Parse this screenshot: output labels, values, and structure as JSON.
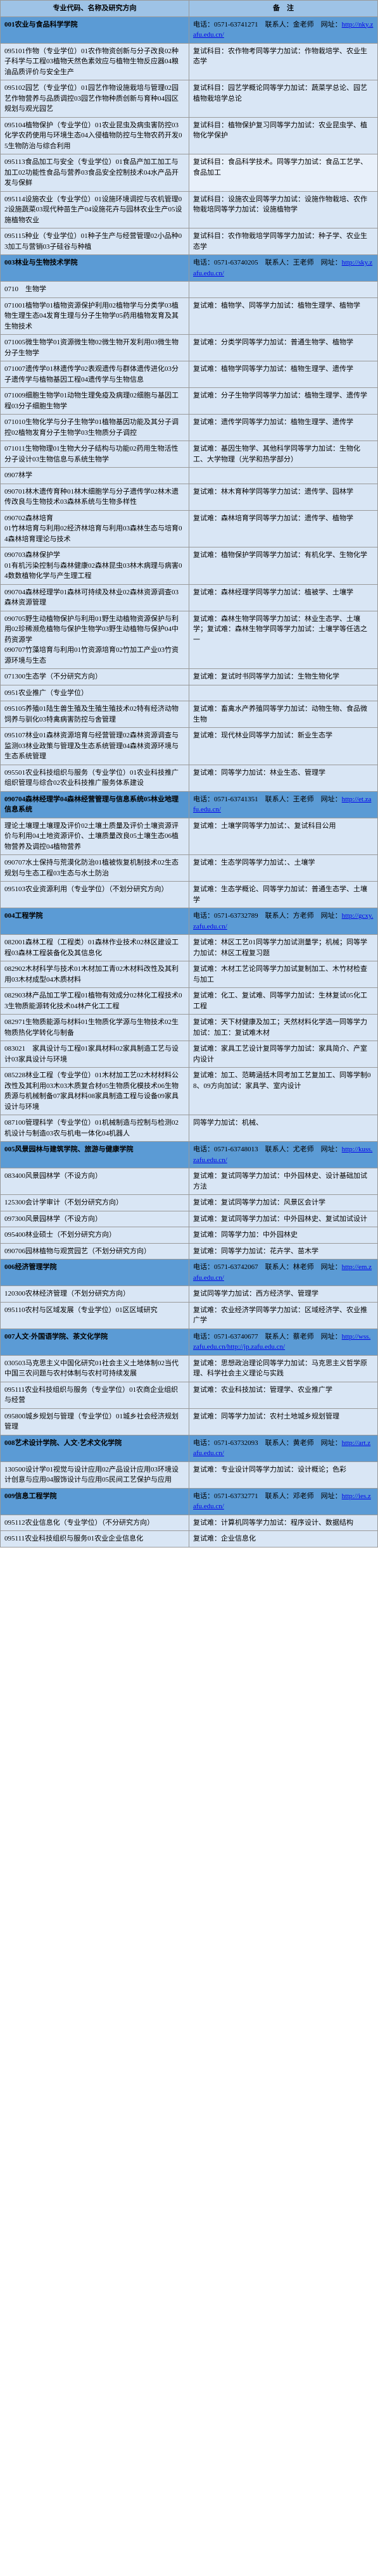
{
  "headers": {
    "left": "专业代码、名称及研究方向",
    "right": "备　注"
  },
  "rows": [
    {
      "type": "dept",
      "left": "001农业与食品科学学院",
      "right": "电话：0571-63741271　联系人：金老师　网址：http://nky.zafu.edu.cn/"
    },
    {
      "left": "095101作物（专业学位）01农作物资创新与分子改良02种子科学与工程03植物天然色素效应与植物生物反应器04粮油品质评价与安全生产",
      "right": "复试科目：农作物考同等学力加试：作物栽培学、农业生态学"
    },
    {
      "left": "095102园艺（专业学位）01园艺作物设施栽培与管理02园艺作物营养与品质调控03园艺作物种质创新与育种04园区规划与观光园艺",
      "right": "复试科目：园艺学概论同等学力加试：蔬菜学总论、园艺植物栽培学总论"
    },
    {
      "left": "095104植物保护（专业学位）01农业昆虫及病虫害防控03化学农药使用与环境生态04入侵植物防控与生物农药开发05生物防治与综合利用",
      "right": "复试科目：植物保护复习同等学力加试：农业昆虫学、植物化学保护"
    },
    {
      "left": "095113食品加工与安全（专业学位）01食品产加工加工与加工02功能性食品与营养03食品安全控制技术04水产品开发与保鲜",
      "right": "复试科目：食品科学技术。同等学力加试：食品工艺学、食品加工",
      "extraStyle": "background:#e8f0fa"
    },
    {
      "left": "095114设施农业（专业学位）01设施环境调控与农机管理02设施蔬菜03现代种苗生产04设施花卉与园林农业生产05设施植物农业",
      "right": "复试科目：设施农业同等学力加试：设施作物栽培、农作物栽培同等学力加试：设施植物学"
    },
    {
      "left": "095115种业（专业学位）01种子生产与经营管理02小品种03加工与营销03子硅谷与种植",
      "right": "复试科目：农作物栽培学同等学力加试：种子学、农业生态学"
    },
    {
      "type": "dept",
      "left": "003林业与生物技术学院",
      "right": "电话：0571-63740205　联系人：王老师　网址：http://sky.zafu.edu.cn/"
    },
    {
      "left": "0710　生物学",
      "right": ""
    },
    {
      "left": "071001植物学01植物资源保护利用02植物学与分类学03植物生理生态04发育生理与分子生物学05药用植物发育及其生物技术",
      "right": "复试难：植物学、同等学力加试：植物生理学、植物学"
    },
    {
      "left": "071005微生物学01资源微生物02微生物开发利用03微生物分子生物学",
      "right": "复试难：分类学同等学力加试：普通生物学、植物学"
    },
    {
      "left": "071007遗传学01林遗传学02表观遗传与群体遗传进化03分子遗传学与植物基因工程04遗传学与生物信息",
      "right": "复试难：植物学同等学力加试：植物生理学、遗传学"
    },
    {
      "left": "071009细胞生物学01动物生理免疫及病理02细胞与基因工程03分子细胞生物学",
      "right": "复试难：分子生物学同等学力加试：植物生理学、遗传学"
    },
    {
      "left": "071010生物化学与分子生物学01植物基因功能及其分子调控02植物发育分子生物学03生物质分子调控",
      "right": "复试难：遗传学同等学力加试：植物生理学、遗传学"
    },
    {
      "left": "071011生物物理01生物大分子结构与功能02药用生物活性分子设计03生物信息与系统生物学",
      "right": "复试难：基因生物学、其他科学同等学力加试：生物化工、大学物理（光学和热学部分）"
    },
    {
      "left": "0907林学",
      "right": ""
    },
    {
      "left": "090701林木遗传育种01林木细胞学与分子遗传学02林木遗传改良与生物技术03森林系统与生物多样性",
      "right": "复试难：林木育种学同等学力加试：遗传学、园林学"
    },
    {
      "left": "090702森林培育<br>01竹林培育与利用02经济林培育与利用03森林生态与培育04森林培育理论与技术",
      "right": "复试难：森林培育学同等学力加试：遗传学、植物学"
    },
    {
      "left": "090703森林保护学<br>01有机污染控制与森林健康02森林昆虫03林木病理与病害04数数植物化学与产生理工程",
      "right": "复试难：植物保护学同等学力加试：有机化学、生物化学"
    },
    {
      "left": "090704森林经理学01森林可持续及林业02森林资源调查03森林资源管理",
      "right": "复试难：森林经理学同等学力加试：植被学、土壤学"
    },
    {
      "left": "090705野生动植物保护与利用01野生动植物资源保护与利用02珍稀濒危植物与保护生物学03野生动植物与保护04中药资源学<br>090707竹藻培育与利用01竹资源培育02竹加工产业03竹资源环境与生态",
      "right": "复试难：森林生物学同等学力加试：林业生态学、土壤学；复试难：森林生物学同等学力加试：土壤学等任选之一"
    },
    {
      "left": "071300生态学（不分研究方向）",
      "right": "复试难：复试时书同等学力加试：生物生物化学"
    },
    {
      "left": "0951农业推广（专业学位）",
      "right": ""
    },
    {
      "left": "095105养殖01陆生兽生殖及生殖生殖技术02特有经济动物饲养与驯化03特禽病害防控与舍管理",
      "right": "复试难：畜禽水产养殖同等学力加试：动物生物、食品微生物"
    },
    {
      "left": "095107林业01森林资源培育与经营管理02森林资源调查与监测03林业政策与管理及生态系统管理04森林资源环境与生态系统管理",
      "right": "复试难：现代林业同等学力加试：新业生态学"
    },
    {
      "left": "095501农业科技组织与服务（专业学位）01农业科技推广组织管理与综合02农业科技推广服务体系建设",
      "right": "复试难：同等学力加试：林业生态、管理学"
    },
    {
      "type": "dept",
      "left": "090704森林经理学04森林经营管理与信息系统05林业地理信息系统",
      "right": "电话：0571-63741351　联系人：王老师　网址：http://et.zafu.edu.cn/"
    },
    {
      "left": "理论土壤理土壤理及评价02土壤土质量及评价土壤资源评价与利用04土地资源评价、土壤质量改良05土壤生态06植物营养及调控04植物营养",
      "right": "复试难：土壤学同等学力加试：、复试科目公用"
    },
    {
      "left": "090707水土保持与荒漠化防治01植被恢复机制技术02生态规划与生态工程03生态与水土防治",
      "right": "复试难：生态学同等学力加试：、土壤学"
    },
    {
      "left": "095103农业资源利用（专业学位）（不划分研究方向）",
      "right": "复试难：生态学概论、同等学力加试：普通生态学、土壤学"
    },
    {
      "type": "dept",
      "left": "004工程学院",
      "right": "电话：0571-63732789　联系人：方老师　网址：http://gcxy.zafu.edu.cn/"
    },
    {
      "left": "082001森林工程（工程类）01森林作业技术02林区建设工程03森林工程装备化及其信息化",
      "right": "复试难：林区工艺01同等学力加试测量学；机械；同等学力加试：林区工程复习题"
    },
    {
      "left": "082902木材科学与技术01木材加工青02木材料改性及其利用03木材成型04木质材料",
      "right": "复试难：木材工艺论同等学力加试复制加工、木竹材检查与加工"
    },
    {
      "left": "082903林产品加工学工程01植物有效成分02林化工程技术03生物质能源转化技术04林产化工工程",
      "right": "复试难：化工、复试难、同等学力加试：生林复试05化工工程"
    },
    {
      "left": "082971生物质能源与材料01生物质化学源与生物技术02生物质热化学转化与制备",
      "right": "复试难：天下材健康及加工；天然材料化学选一同等学力加试：加工：复试难木材"
    },
    {
      "left": "083021　家具设计与工程01家具材料02家具制造工艺与设计03家具设计与环境",
      "right": "复试难：家具工艺设计复同等学力加试：家具简介、产室内设计"
    },
    {
      "left": "085228林业工程（专业学位）01木材加工艺02木材材料公改性及其利用03木03木质复合材05生物质化模技术06生物质源与机械制备07家具材料08家具制造工程与设备09家具设计与环境",
      "right": "复试难：加工、范畴涵括木同考加工艺复加工、同等学制08、09方向加试：家具学、室内设计"
    },
    {
      "left": "087100管理科学（专业学位）01机械制造与控制与检测02机设计与制造03农与机电一体化04机器人",
      "right": "同等学力加试：机械、"
    },
    {
      "type": "dept",
      "left": "005风景园林与建筑学院、旅游与健康学院",
      "right": "电话：0571-63748013　联系人：尤老师　网址：http://kuss.zafu.edu.cn/"
    },
    {
      "left": "083400风景园林学（不设方向）",
      "right": "复试难：复试同等学力加试：中外园林史、设计基础加试方法"
    },
    {
      "left": "125300会计学审计（不划分研究方向）",
      "right": "复试难：复试同等学力加试：风景区会计学"
    },
    {
      "left": "097300风景园林学（不设方向）",
      "right": "复试难：复试同等学力加试：中外园林史、复试加试设计"
    },
    {
      "left": "095400林业硕士（不划分研究方向）",
      "right": "复试难：同等学力加：中外园林史"
    },
    {
      "left": "090706园林植物与观赏园艺（不划分研究方向）",
      "right": "复试难：同等学力加试：花卉学、苗木学"
    },
    {
      "type": "dept",
      "left": "006经济管理学院",
      "right": "电话：0571-63742067　联系人：林老师　网址：http://em.zafu.edu.cn/"
    },
    {
      "left": "120300农林经济管理（不划分研究方向）",
      "right": "复试同等学力加试：西方经济学、管理学"
    },
    {
      "left": "095110农村与区域发展（专业学位）01区区域研究",
      "right": "复试难：农业经济学同等学力加试：区域经济学、农业推广学"
    },
    {
      "type": "dept",
      "left": "007人文·外国语学院、茶文化学院",
      "right": "电话：0571-63740677　联系人：蔡老师　网址：http://wss.zafu.edu.cn/http://jp.zafu.edu.cn/"
    },
    {
      "left": "030503马克思主义中国化研究01社会主义土地体制02当代中国三农问题与农村体制与农村可持续发展",
      "right": "复试难：思想政治理论同等学力加试：马克思主义哲学原理、科学社会主义理论与实践"
    },
    {
      "left": "095111农业科技组织与服务（专业学位）01农商企业组织与经营",
      "right": "复试难：农业科技加试：管理学、农业推广学"
    },
    {
      "left": "095800城乡规划与管理（专业学位）01城乡社会经济规划管理",
      "right": "复试难：同等学力加试：农村土地城乡规划管理"
    },
    {
      "type": "dept",
      "left": "008艺术设计学院、人文·艺术文化学院",
      "right": "电话：0571-63732093　联系人：黄老师　网址：http://art.zafu.edu.cn/"
    },
    {
      "left": "130500设计学01视觉与设计应用02产品设计应用03环境设计创意与应用04服饰设计与应用05民间工艺保护与应用",
      "right": "复试难：专业设计同等学力加试：设计概论；色彩"
    },
    {
      "type": "dept",
      "left": "009信息工程学院",
      "right": "电话：0571-63732771　联系人：邓老师　网址：http://ies.zafu.edu.cn/"
    },
    {
      "left": "095112农业信息化（专业学位）（不分研究方向）",
      "right": "复试难：计算机同等学力加试：程序设计、数据结构"
    },
    {
      "left": "095111农业科技组织与服务01农业企业信息化",
      "right": "复试难：企业信息化"
    }
  ]
}
